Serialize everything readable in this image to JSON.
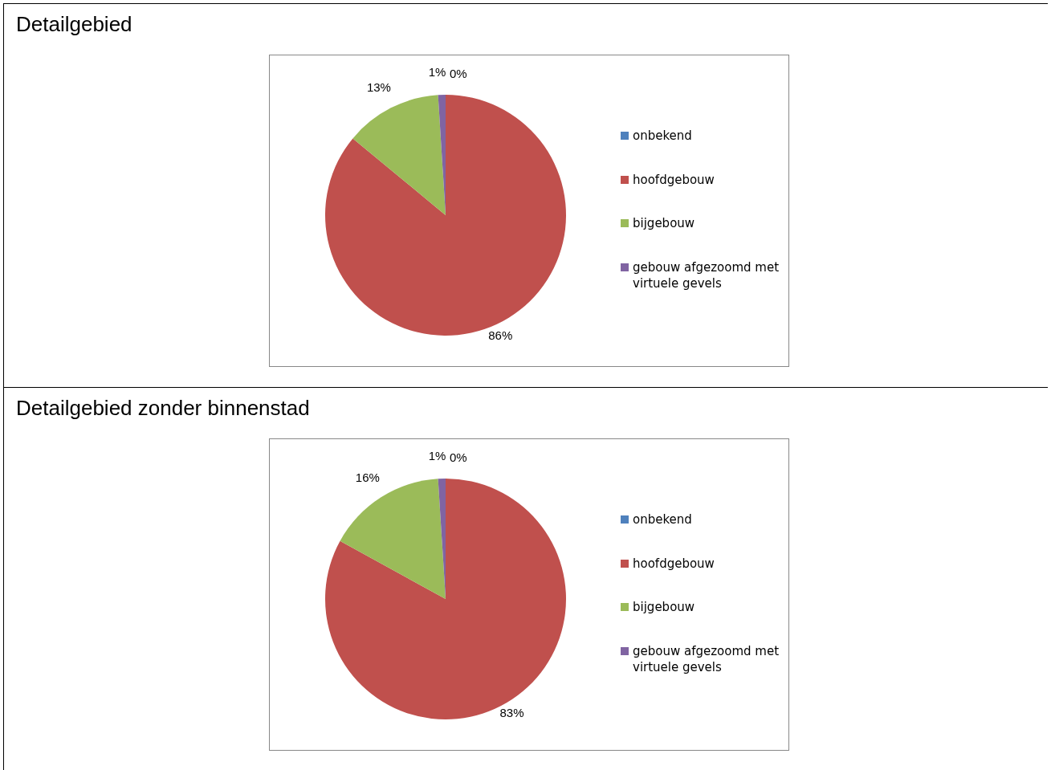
{
  "chart_data": [
    {
      "type": "pie",
      "title": "Detailgebied",
      "categories": [
        "onbekend",
        "hoofdgebouw",
        "bijgebouw",
        "gebouw afgezoomd met virtuele gevels"
      ],
      "values": [
        0,
        86,
        13,
        1
      ],
      "colors": [
        "#4f81bd",
        "#c0504d",
        "#9bbb59",
        "#8064a2"
      ],
      "value_labels": [
        "0%",
        "86%",
        "13%",
        "1%"
      ],
      "legend": "right"
    },
    {
      "type": "pie",
      "title": "Detailgebied zonder binnenstad",
      "categories": [
        "onbekend",
        "hoofdgebouw",
        "bijgebouw",
        "gebouw afgezoomd met virtuele gevels"
      ],
      "values": [
        0,
        83,
        16,
        1
      ],
      "colors": [
        "#4f81bd",
        "#c0504d",
        "#9bbb59",
        "#8064a2"
      ],
      "value_labels": [
        "0%",
        "83%",
        "16%",
        "1%"
      ],
      "legend": "right"
    }
  ]
}
